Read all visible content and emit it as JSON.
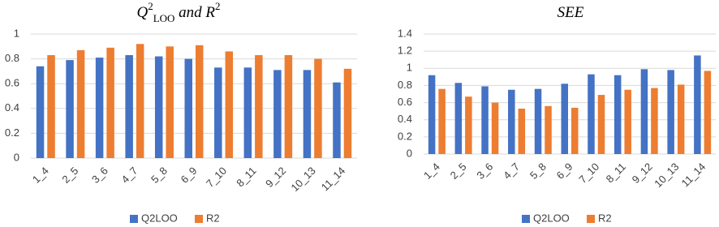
{
  "chart_data": [
    {
      "type": "bar",
      "title": [
        "Q",
        "2",
        "LOO",
        " and R",
        "2"
      ],
      "categories": [
        "1_4",
        "2_5",
        "3_6",
        "4_7",
        "5_8",
        "6_9",
        "7_10",
        "8_11",
        "9_12",
        "10_13",
        "11_14"
      ],
      "series": [
        {
          "name": "Q2LOO",
          "color": "#4472c4",
          "values": [
            0.74,
            0.79,
            0.81,
            0.83,
            0.82,
            0.8,
            0.73,
            0.73,
            0.71,
            0.71,
            0.61
          ]
        },
        {
          "name": "R2",
          "color": "#ed7d31",
          "values": [
            0.83,
            0.87,
            0.89,
            0.92,
            0.9,
            0.91,
            0.86,
            0.83,
            0.83,
            0.8,
            0.72
          ]
        }
      ],
      "ylim": [
        0,
        1
      ],
      "yticks": [
        0,
        0.2,
        0.4,
        0.6,
        0.8,
        1
      ],
      "grid": true,
      "legend": "bottom"
    },
    {
      "type": "bar",
      "title": [
        "SEE"
      ],
      "categories": [
        "1_4",
        "2_5",
        "3_6",
        "4_7",
        "5_8",
        "6_9",
        "7_10",
        "8_11",
        "9_12",
        "10_13",
        "11_14"
      ],
      "series": [
        {
          "name": "Q2LOO",
          "color": "#4472c4",
          "values": [
            0.92,
            0.83,
            0.79,
            0.75,
            0.76,
            0.82,
            0.93,
            0.92,
            0.99,
            0.98,
            1.15
          ]
        },
        {
          "name": "R2",
          "color": "#ed7d31",
          "values": [
            0.76,
            0.67,
            0.6,
            0.53,
            0.56,
            0.54,
            0.69,
            0.75,
            0.77,
            0.81,
            0.97
          ]
        }
      ],
      "ylim": [
        0,
        1.4
      ],
      "yticks": [
        0,
        0.2,
        0.4,
        0.6,
        0.8,
        1,
        1.2,
        1.4
      ],
      "grid": true,
      "legend": "bottom"
    }
  ]
}
